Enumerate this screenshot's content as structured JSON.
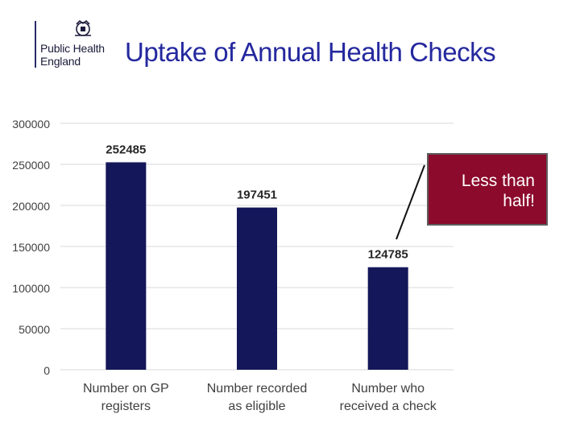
{
  "header": {
    "logo_line1": "Public Health",
    "logo_line2": "England",
    "logo_icon": "royal-crest-icon",
    "title": "Uptake of Annual Health Checks"
  },
  "callout": {
    "text": "Less than half!",
    "color": "#8c0a2c"
  },
  "chart_data": {
    "type": "bar",
    "title": "Uptake of Annual Health Checks",
    "xlabel": "",
    "ylabel": "",
    "categories": [
      "Number on GP registers",
      "Number recorded as eligible",
      "Number who received a check"
    ],
    "category_lines": [
      [
        "Number on GP",
        "registers"
      ],
      [
        "Number recorded",
        "as eligible"
      ],
      [
        "Number who",
        "received a check"
      ]
    ],
    "values": [
      252485,
      197451,
      124785
    ],
    "data_labels": [
      "252485",
      "197451",
      "124785"
    ],
    "ylim": [
      0,
      300000
    ],
    "yticks": [
      0,
      50000,
      100000,
      150000,
      200000,
      250000,
      300000
    ],
    "grid": true,
    "legend": "none",
    "bar_color": "#141759"
  }
}
